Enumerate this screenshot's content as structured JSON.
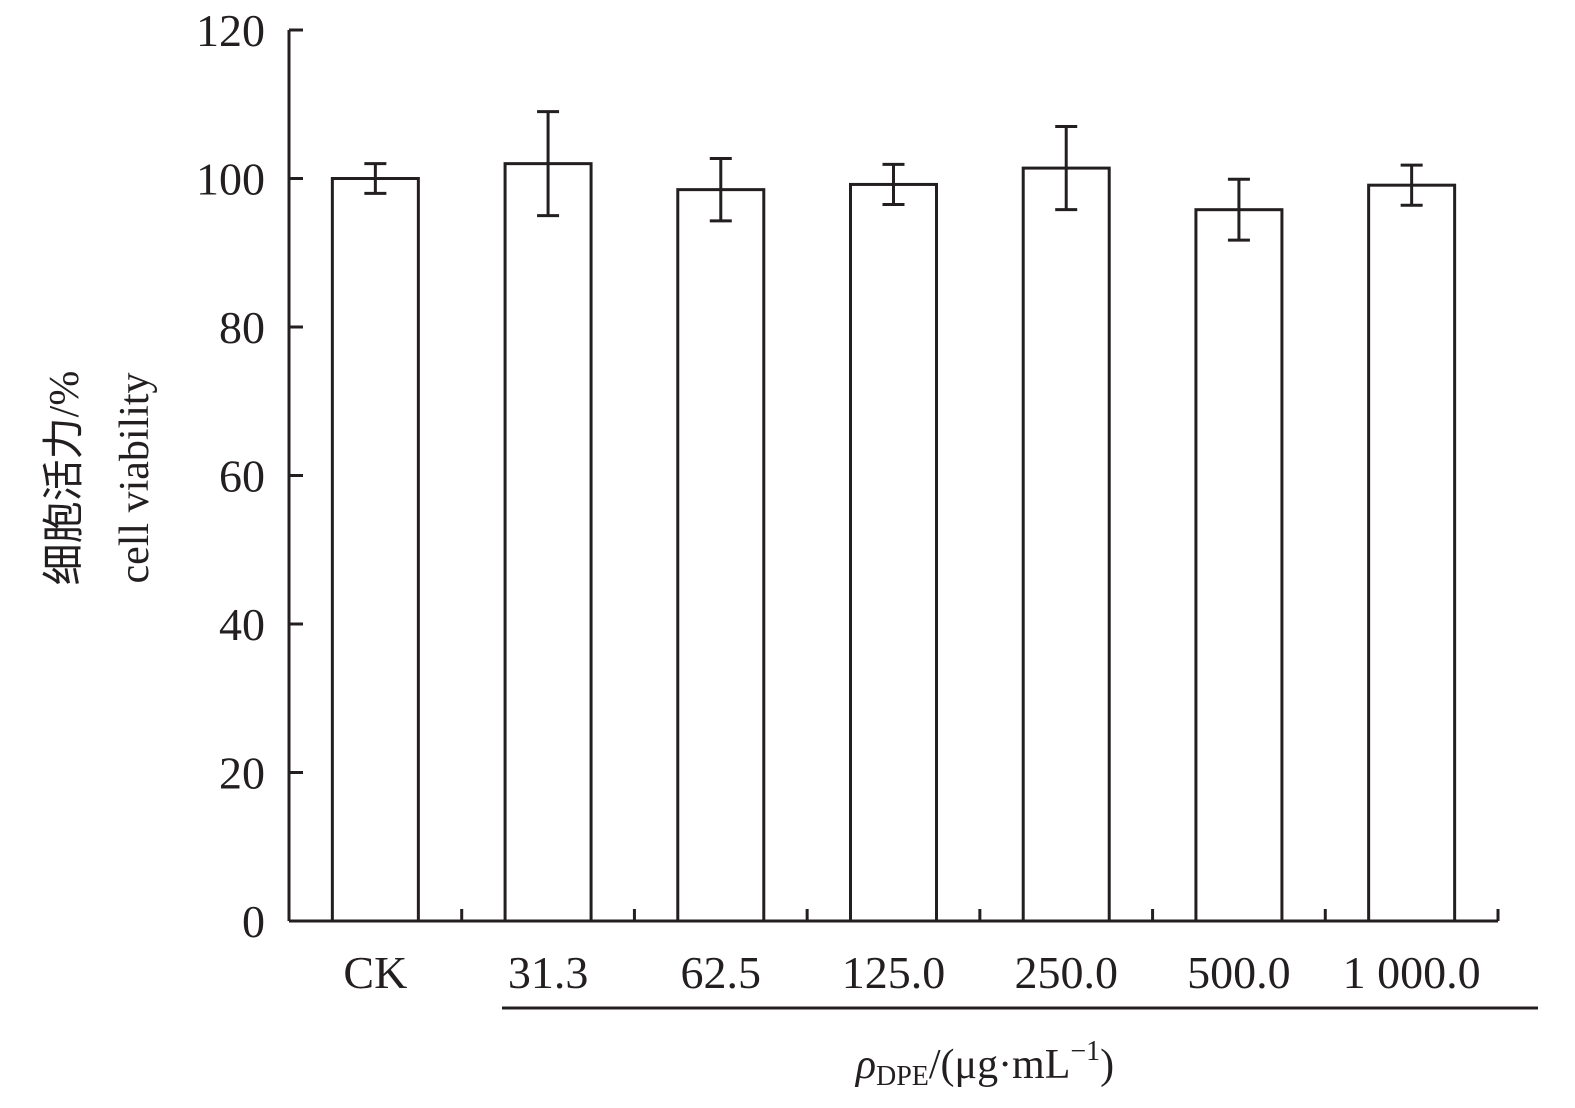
{
  "chart_data": {
    "type": "bar",
    "categories": [
      "CK",
      "31.3",
      "62.5",
      "125.0",
      "250.0",
      "500.0",
      "1 000.0"
    ],
    "values": [
      100.0,
      102.0,
      98.5,
      99.2,
      101.4,
      95.8,
      99.1
    ],
    "errors": [
      2.0,
      7.0,
      4.2,
      2.7,
      5.6,
      4.1,
      2.7
    ],
    "ylim": [
      0,
      120
    ],
    "yticks": [
      0,
      20,
      40,
      60,
      80,
      100,
      120
    ],
    "ylabel_cn": "细胞活力/%",
    "ylabel_en": "cell viability",
    "xlabel": {
      "symbol": "ρ",
      "subscript": "DPE",
      "unit_open": "/(μg·mL",
      "superscript": "−1",
      "unit_close": ")"
    },
    "bar_fill": "#ffffff",
    "stroke_color": "#231f20"
  }
}
